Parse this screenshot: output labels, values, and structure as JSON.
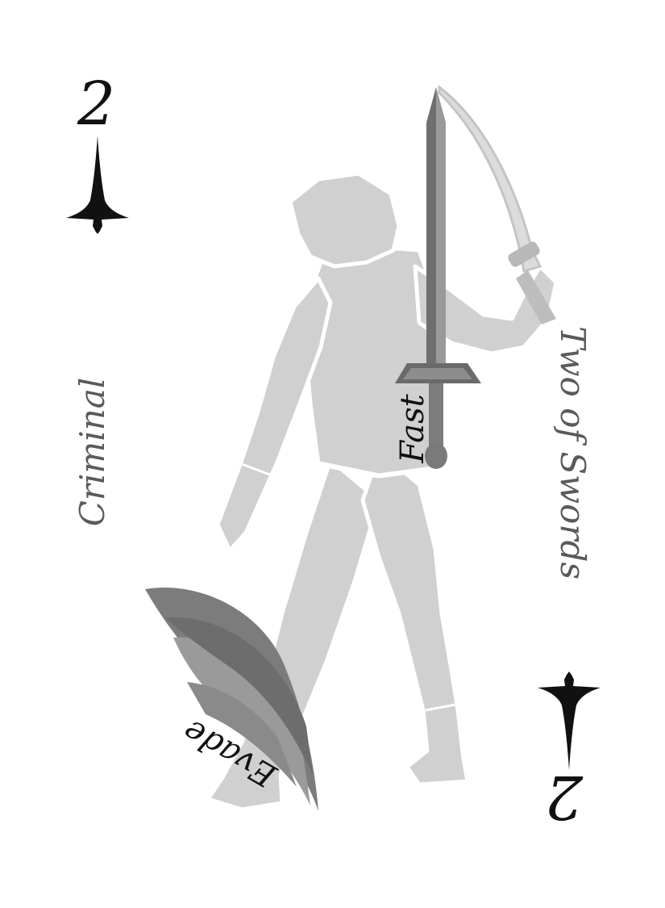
{
  "card": {
    "rank": "2",
    "criminal_label": "Criminal",
    "suit_name": "Two of Swords",
    "fast_label": "Fast",
    "evade_label": "Evade"
  },
  "colors": {
    "ink": "#111111",
    "label_grey": "#5a5a5a",
    "figure_grey": "#cfcfcf",
    "sword_grey": "#7a7a7a",
    "wing_grey": "#7c7c7c"
  },
  "icons": [
    "sword-suit-icon",
    "hooded-figure-illustration",
    "sword-icon",
    "wing-icon"
  ]
}
